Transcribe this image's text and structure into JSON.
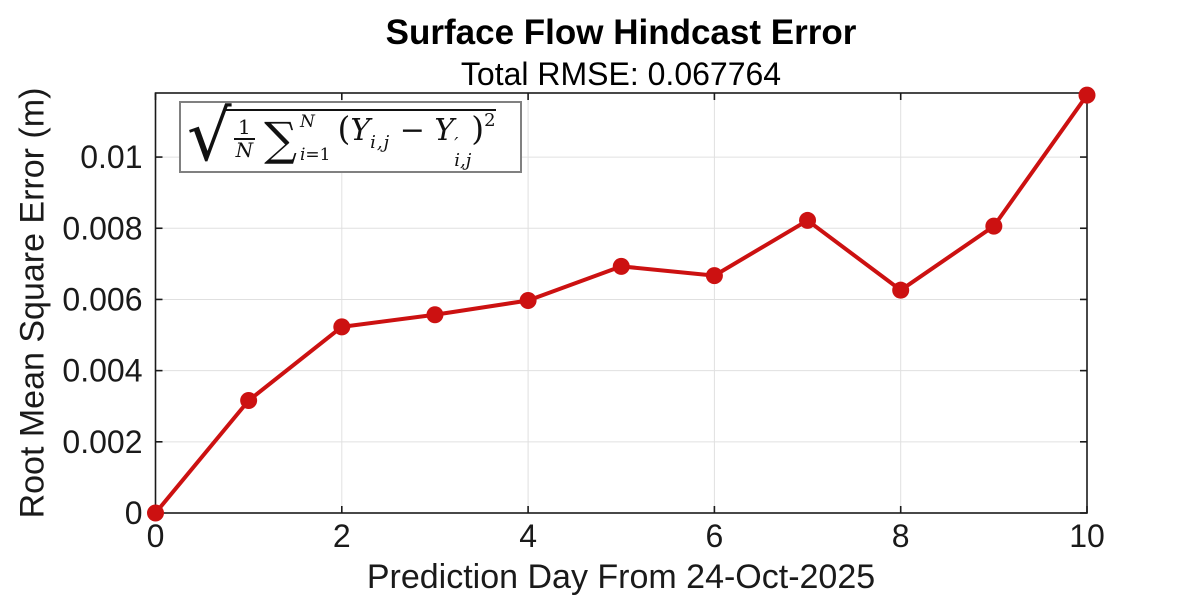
{
  "chart_data": {
    "type": "line",
    "title": "Surface Flow Hindcast Error",
    "subtitle": "Total RMSE: 0.067764",
    "xlabel": "Prediction Day From 24-Oct-2025",
    "ylabel": "Root Mean Square Error (m)",
    "x": [
      0,
      1,
      2,
      3,
      4,
      5,
      6,
      7,
      8,
      9,
      10
    ],
    "y": [
      0.0,
      0.00316,
      0.00523,
      0.00557,
      0.00597,
      0.00693,
      0.00667,
      0.00822,
      0.00626,
      0.00806,
      0.01174
    ],
    "xlim": [
      0,
      10
    ],
    "ylim": [
      0,
      0.0118
    ],
    "xticks": [
      0,
      2,
      4,
      6,
      8,
      10
    ],
    "xtick_labels": [
      "0",
      "2",
      "4",
      "6",
      "8",
      "10"
    ],
    "yticks": [
      0,
      0.002,
      0.004,
      0.006,
      0.008,
      0.01
    ],
    "ytick_labels": [
      "0",
      "0.002",
      "0.004",
      "0.006",
      "0.008",
      "0.01"
    ],
    "grid": true,
    "legend": "none",
    "line_color": "#cc1111",
    "marker": "filled-circle",
    "annotation": "sqrt((1/N) * sum_{i=1}^{N} (Y_{i,j} - Y'_{i,j})^2)"
  },
  "formula": {
    "radical": "√",
    "frac_num": "1",
    "frac_den": "N",
    "sigma": "∑",
    "sum_upper": "N",
    "sum_lower_var": "i",
    "sum_lower_rest": "=1",
    "open_paren": "(",
    "term1_base": "Y",
    "term1_sub": "i,j",
    "minus": " − ",
    "term2_base": "Y",
    "prime": "′",
    "term2_sub": "i,j",
    "close_paren": ")",
    "exponent": "2"
  },
  "colors": {
    "line": "#cc1111",
    "grid": "#e0e0e0",
    "axis": "#1a1a1a",
    "tick_text": "#1a1a1a",
    "title_text": "#000000",
    "formula_border": "#808080",
    "background": "#ffffff"
  }
}
